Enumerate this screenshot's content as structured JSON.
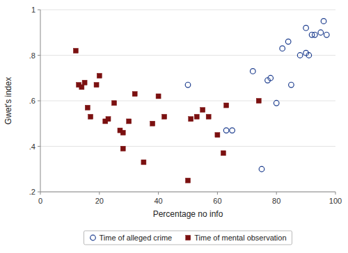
{
  "chart_data": {
    "type": "scatter",
    "xlabel": "Percentage no info",
    "ylabel": "Gwet's index",
    "xlim": [
      0,
      100
    ],
    "ylim": [
      0.2,
      1.0
    ],
    "xticks": [
      0,
      20,
      40,
      60,
      80,
      100
    ],
    "yticks": [
      {
        "value": 0.2,
        "label": ".2"
      },
      {
        "value": 0.4,
        "label": ".4"
      },
      {
        "value": 0.6,
        "label": ".6"
      },
      {
        "value": 0.8,
        "label": ".8"
      },
      1
    ],
    "grid": true,
    "legend": "bottom",
    "series": [
      {
        "name": "Time of alleged crime",
        "color": "#1f3f8f",
        "marker": "open-circle",
        "x": [
          50,
          63,
          65,
          72,
          75,
          77,
          78,
          80,
          82,
          84,
          85,
          88,
          90,
          90,
          91,
          92,
          93,
          95,
          96,
          97
        ],
        "values": [
          0.67,
          0.47,
          0.47,
          0.73,
          0.3,
          0.69,
          0.7,
          0.59,
          0.83,
          0.86,
          0.67,
          0.8,
          0.81,
          0.92,
          0.8,
          0.89,
          0.89,
          0.9,
          0.95,
          0.89
        ]
      },
      {
        "name": "Time of mental observation",
        "color": "#7b1010",
        "marker": "square",
        "x": [
          12,
          13,
          14,
          15,
          16,
          17,
          19,
          20,
          22,
          23,
          25,
          27,
          28,
          28,
          30,
          32,
          35,
          38,
          40,
          42,
          50,
          51,
          53,
          55,
          57,
          60,
          62,
          63,
          74
        ],
        "values": [
          0.82,
          0.67,
          0.66,
          0.68,
          0.57,
          0.53,
          0.67,
          0.71,
          0.51,
          0.52,
          0.59,
          0.47,
          0.46,
          0.39,
          0.51,
          0.63,
          0.33,
          0.5,
          0.62,
          0.53,
          0.25,
          0.52,
          0.53,
          0.56,
          0.53,
          0.45,
          0.37,
          0.58,
          0.6
        ]
      }
    ]
  }
}
